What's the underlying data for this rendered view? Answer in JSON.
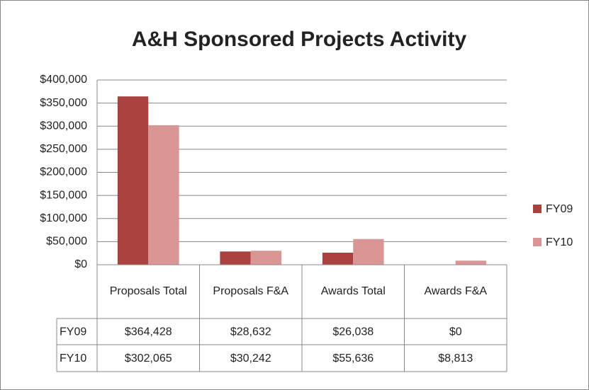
{
  "chart_data": {
    "type": "bar",
    "title": "A&H Sponsored Projects Activity",
    "categories": [
      "Proposals Total",
      "Proposals F&A",
      "Awards Total",
      "Awards F&A"
    ],
    "series": [
      {
        "name": "FY09",
        "color": "#a9423f",
        "values": [
          364428,
          28632,
          26038,
          0
        ],
        "value_labels": [
          "$364,428",
          "$28,632",
          "$26,038",
          "$0"
        ]
      },
      {
        "name": "FY10",
        "color": "#d99694",
        "values": [
          302065,
          30242,
          55636,
          8813
        ],
        "value_labels": [
          "$302,065",
          "$30,242",
          "$55,636",
          "$8,813"
        ]
      }
    ],
    "ylim": [
      0,
      400000
    ],
    "yticks": [
      {
        "value": 0,
        "label": "$0"
      },
      {
        "value": 50000,
        "label": "$50,000"
      },
      {
        "value": 100000,
        "label": "$100,000"
      },
      {
        "value": 150000,
        "label": "$150,000"
      },
      {
        "value": 200000,
        "label": "$200,000"
      },
      {
        "value": 250000,
        "label": "$250,000"
      },
      {
        "value": 300000,
        "label": "$300,000"
      },
      {
        "value": 350000,
        "label": "$350,000"
      },
      {
        "value": 400000,
        "label": "$400,000"
      }
    ],
    "grid": true,
    "legend": "right"
  }
}
